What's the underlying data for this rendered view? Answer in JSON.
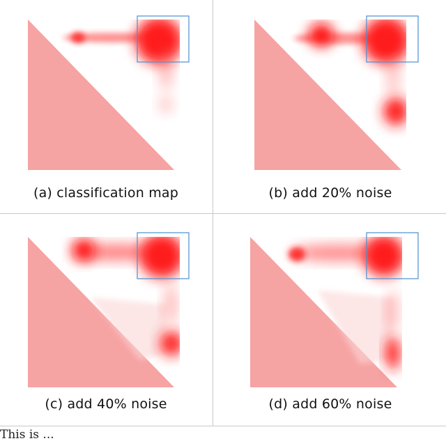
{
  "panels": [
    {
      "id": "a",
      "caption": "(a) classification map"
    },
    {
      "id": "b",
      "caption": "(b) add 20% noise"
    },
    {
      "id": "c",
      "caption": "(c) add 40% noise"
    },
    {
      "id": "d",
      "caption": "(d) add 60% noise"
    }
  ],
  "colors": {
    "triangle": "#f5a0a0",
    "heat": "#ff0000",
    "box": "#4a8fd0",
    "divider": "#c8c8c8"
  },
  "below_text": "This is ... "
}
